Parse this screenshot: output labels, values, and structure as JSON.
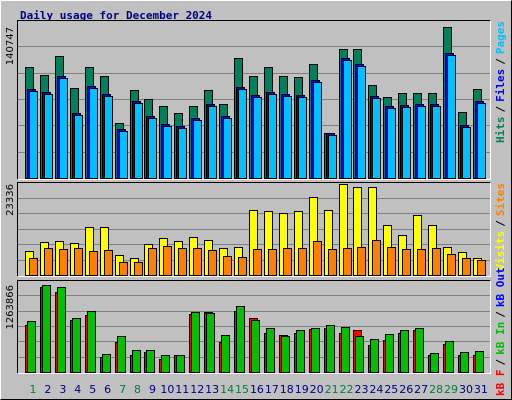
{
  "title": "Daily usage for December 2024",
  "legend_separator": "/",
  "chart_data": [
    {
      "type": "bar",
      "ylim": [
        0,
        140747
      ],
      "yticks": [
        140747
      ],
      "grid": true,
      "series": [
        {
          "name": "Hits",
          "color": "#00805c",
          "values": [
            103452,
            95996,
            113704,
            83880,
            103452,
            95064,
            51260,
            82016,
            73628,
            67104,
            60580,
            67104,
            82016,
            68968,
            111840,
            95064,
            103452,
            95064,
            94132,
            106248,
            41940,
            120228,
            120228,
            86676,
            75492,
            79220,
            79220,
            79220,
            140747,
            61512,
            82948
          ]
        },
        {
          "name": "Files",
          "color": "#0000ff",
          "values": [
            82948,
            80152,
            95064,
            60580,
            85744,
            78288,
            45668,
            71764,
            57784,
            50328,
            48464,
            55920,
            68968,
            57784,
            84812,
            77356,
            80152,
            78288,
            77356,
            91336,
            41940,
            111840,
            106248,
            76424,
            67104,
            68036,
            68968,
            68968,
            116500,
            49396,
            71764
          ]
        },
        {
          "name": "Pages",
          "color": "#00c0ff",
          "values": [
            81084,
            78288,
            93200,
            58716,
            83880,
            76424,
            43804,
            69900,
            55920,
            48464,
            46600,
            54056,
            67104,
            55920,
            82948,
            75492,
            78288,
            76424,
            75492,
            89472,
            40076,
            109976,
            104384,
            74560,
            65240,
            66172,
            67104,
            67104,
            114636,
            47532,
            69900
          ]
        }
      ]
    },
    {
      "type": "bar",
      "ylim": [
        0,
        23336
      ],
      "yticks": [
        23336
      ],
      "grid": true,
      "series": [
        {
          "name": "Visits",
          "color": "#ffff00",
          "values": [
            6144,
            8448,
            8704,
            8192,
            12288,
            12288,
            5120,
            4352,
            7936,
            9472,
            8704,
            9728,
            8960,
            6912,
            7168,
            16640,
            16384,
            15872,
            16384,
            19968,
            16640,
            23336,
            22528,
            22528,
            12800,
            10240,
            15360,
            12800,
            7168,
            5888,
            4352
          ]
        },
        {
          "name": "Sites",
          "color": "#ff8000",
          "values": [
            4352,
            6912,
            6656,
            6912,
            6144,
            6400,
            3328,
            3328,
            6912,
            7424,
            6912,
            6912,
            6400,
            4864,
            4608,
            6656,
            6656,
            6912,
            6912,
            8704,
            6656,
            6912,
            7168,
            8960,
            7168,
            6656,
            6656,
            6912,
            5376,
            4352,
            3840
          ]
        }
      ]
    },
    {
      "type": "bar",
      "ylim": [
        0,
        1263866
      ],
      "yticks": [
        1263866
      ],
      "grid": true,
      "categories": [
        "1",
        "2",
        "3",
        "4",
        "5",
        "6",
        "7",
        "8",
        "9",
        "10",
        "11",
        "12",
        "13",
        "14",
        "15",
        "16",
        "17",
        "18",
        "19",
        "20",
        "21",
        "22",
        "23",
        "24",
        "25",
        "26",
        "27",
        "28",
        "29",
        "30",
        "31"
      ],
      "category_colors": [
        "#008040",
        "#000080",
        "#000080",
        "#000080",
        "#000080",
        "#000080",
        "#008040",
        "#008040",
        "#000080",
        "#000080",
        "#000080",
        "#000080",
        "#000080",
        "#008040",
        "#008040",
        "#000080",
        "#000080",
        "#000080",
        "#000080",
        "#000080",
        "#008040",
        "#008040",
        "#000080",
        "#000080",
        "#000080",
        "#000080",
        "#000080",
        "#008040",
        "#008040",
        "#000080",
        "#000080"
      ],
      "series": [
        {
          "name": "kB F",
          "color": "#ff0000",
          "values": [
            682769,
            1234795,
            1162160,
            755404,
            828039,
            217905,
            435810,
            246959,
            290540,
            188851,
            246959,
            842566,
            871620,
            435810,
            886147,
            784458,
            566553,
            537499,
            566553,
            624661,
            639188,
            566553,
            610134,
            392229,
            464864,
            566553,
            610134,
            246959,
            406756,
            246959,
            246959
          ]
        },
        {
          "name": "kB In",
          "color": "#00c000",
          "values": [
            740877,
            1263866,
            1234795,
            784458,
            886147,
            261486,
            522972,
            319594,
            319594,
            246959,
            246959,
            871620,
            857093,
            537499,
            958782,
            755404,
            639188,
            522972,
            610134,
            639188,
            682769,
            653715,
            522972,
            479391,
            552026,
            610134,
            639188,
            276013,
            450337,
            290540,
            305067
          ]
        },
        {
          "name": "kB Out",
          "color": "#0000ff",
          "values": [
            null,
            null,
            null,
            null,
            null,
            null,
            null,
            null,
            null,
            null,
            null,
            null,
            null,
            null,
            null,
            null,
            null,
            null,
            null,
            null,
            null,
            null,
            null,
            null,
            null,
            null,
            null,
            null,
            null,
            null,
            null
          ]
        }
      ]
    }
  ]
}
